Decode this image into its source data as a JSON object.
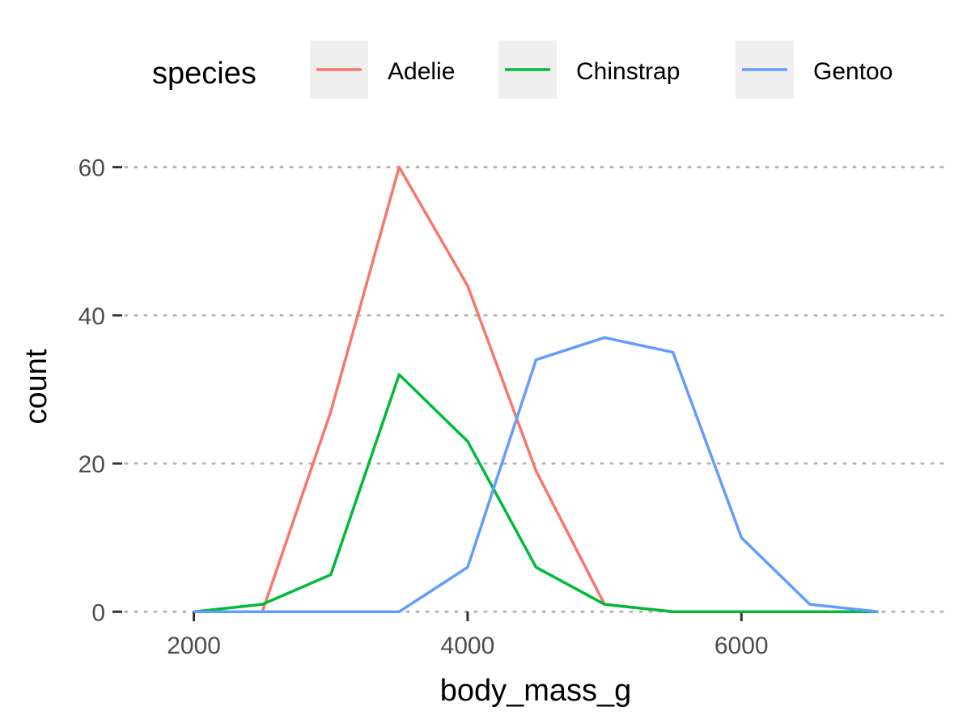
{
  "chart_data": {
    "type": "line",
    "xlabel": "body_mass_g",
    "ylabel": "count",
    "xlim": [
      1500,
      7500
    ],
    "ylim": [
      -1.5,
      64
    ],
    "x_ticks": [
      2000,
      4000,
      6000
    ],
    "y_ticks": [
      0,
      20,
      40,
      60
    ],
    "grid": "horizontal dotted major lines",
    "legend": {
      "title": "species",
      "position": "top"
    },
    "x": [
      2000,
      2500,
      3000,
      3500,
      4000,
      4500,
      5000,
      5500,
      6000,
      6500,
      7000
    ],
    "series": [
      {
        "name": "Adelie",
        "color": "#F8766D",
        "values": [
          0,
          0,
          27,
          60,
          44,
          19,
          1,
          0,
          0,
          0,
          0
        ]
      },
      {
        "name": "Chinstrap",
        "color": "#00BA38",
        "values": [
          0,
          1,
          5,
          32,
          23,
          6,
          1,
          0,
          0,
          0,
          0
        ]
      },
      {
        "name": "Gentoo",
        "color": "#619CFF",
        "values": [
          0,
          0,
          0,
          0,
          6,
          34,
          37,
          35,
          10,
          1,
          0
        ]
      }
    ]
  }
}
